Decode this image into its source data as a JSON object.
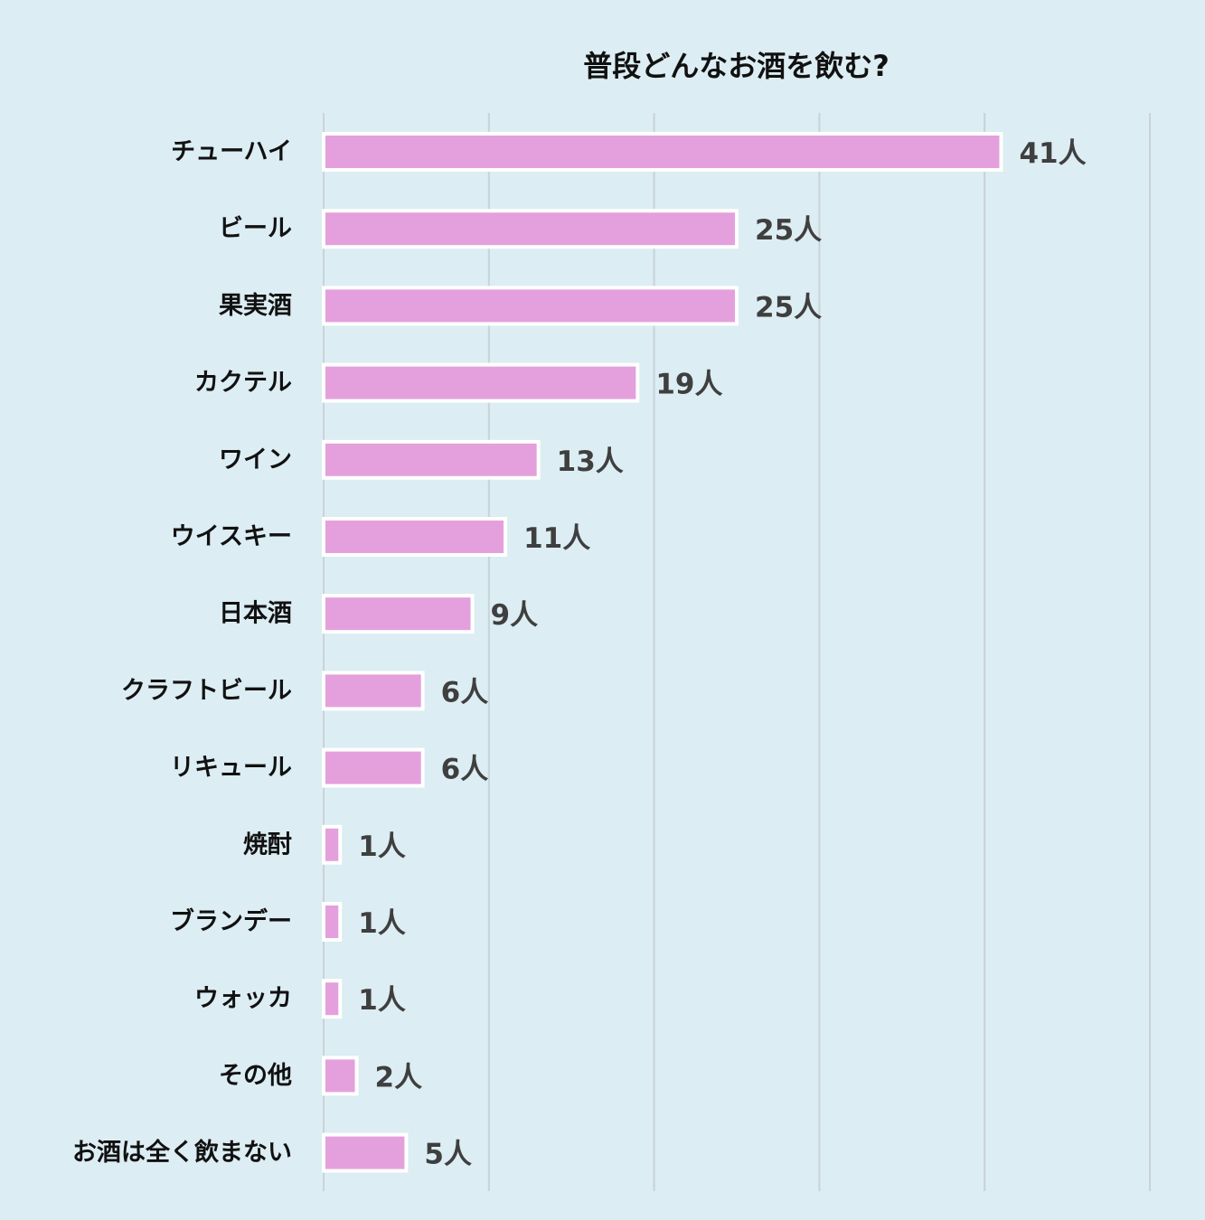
{
  "chart_data": {
    "type": "bar",
    "orientation": "horizontal",
    "title": "普段どんなお酒を飲む?",
    "xlabel": "",
    "ylabel": "",
    "xlim": [
      0,
      50
    ],
    "gridlines": [
      0,
      10,
      20,
      30,
      40,
      50
    ],
    "grid": true,
    "legend": "none",
    "unit_suffix": "人",
    "categories": [
      "チューハイ",
      "ビール",
      "果実酒",
      "カクテル",
      "ワイン",
      "ウイスキー",
      "日本酒",
      "クラフトビール",
      "リキュール",
      "焼酎",
      "ブランデー",
      "ウォッカ",
      "その他",
      "お酒は全く飲まない"
    ],
    "values": [
      41,
      25,
      25,
      19,
      13,
      11,
      9,
      6,
      6,
      1,
      1,
      1,
      2,
      5
    ],
    "value_labels": [
      "41人",
      "25人",
      "25人",
      "19人",
      "13人",
      "11人",
      "9人",
      "6人",
      "6人",
      "1人",
      "1人",
      "1人",
      "2人",
      "5人"
    ],
    "colors": {
      "bar": "#e4a0dc",
      "bar_outline": "#ffffff",
      "grid": "#c9d3d7",
      "background": "#dcedf3",
      "category_text": "#111111",
      "value_text": "#3f3f3f"
    }
  }
}
